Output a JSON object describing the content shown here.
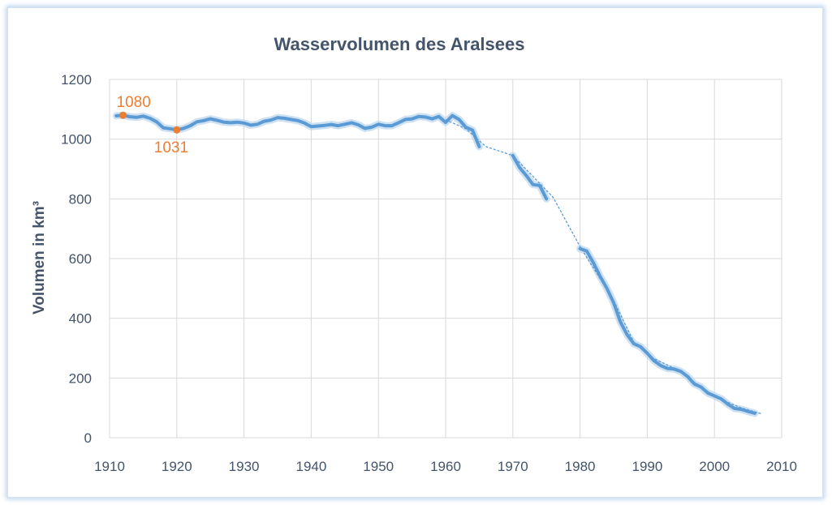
{
  "chart_data": {
    "type": "line",
    "title": "Wasservolumen des Aralsees",
    "xlabel": "",
    "ylabel": "Volumen in km³",
    "xlim": [
      1910,
      2010
    ],
    "ylim": [
      0,
      1200
    ],
    "x_ticks": [
      "1910",
      "1920",
      "1930",
      "1940",
      "1950",
      "1960",
      "1970",
      "1980",
      "1990",
      "2000",
      "2010"
    ],
    "y_ticks": [
      "0",
      "200",
      "400",
      "600",
      "800",
      "1000",
      "1200"
    ],
    "grid": true,
    "legend": "none",
    "colors": {
      "line": "#5b9bd5",
      "glow": "#bdd7ee",
      "annotation": "#ed7d31",
      "grid": "#d9d9d9",
      "text": "#44546a"
    },
    "series": [
      {
        "style": "solid",
        "segments": [
          [
            [
              1911,
              1078
            ],
            [
              1912,
              1080
            ],
            [
              1913,
              1075
            ],
            [
              1914,
              1073
            ],
            [
              1915,
              1077
            ],
            [
              1916,
              1070
            ],
            [
              1917,
              1058
            ],
            [
              1918,
              1038
            ],
            [
              1919,
              1035
            ],
            [
              1920,
              1031
            ],
            [
              1921,
              1036
            ],
            [
              1922,
              1045
            ],
            [
              1923,
              1058
            ],
            [
              1924,
              1062
            ],
            [
              1925,
              1068
            ],
            [
              1926,
              1063
            ],
            [
              1927,
              1057
            ],
            [
              1928,
              1055
            ],
            [
              1929,
              1057
            ],
            [
              1930,
              1054
            ],
            [
              1931,
              1047
            ],
            [
              1932,
              1050
            ],
            [
              1933,
              1060
            ],
            [
              1934,
              1064
            ],
            [
              1935,
              1072
            ],
            [
              1936,
              1070
            ],
            [
              1937,
              1066
            ],
            [
              1938,
              1062
            ],
            [
              1939,
              1054
            ],
            [
              1940,
              1042
            ],
            [
              1941,
              1044
            ],
            [
              1942,
              1046
            ],
            [
              1943,
              1049
            ],
            [
              1944,
              1045
            ],
            [
              1945,
              1050
            ],
            [
              1946,
              1055
            ],
            [
              1947,
              1048
            ],
            [
              1948,
              1036
            ],
            [
              1949,
              1040
            ],
            [
              1950,
              1050
            ],
            [
              1951,
              1045
            ],
            [
              1952,
              1045
            ],
            [
              1953,
              1055
            ],
            [
              1954,
              1066
            ],
            [
              1955,
              1068
            ],
            [
              1956,
              1076
            ],
            [
              1957,
              1074
            ],
            [
              1958,
              1068
            ],
            [
              1959,
              1076
            ],
            [
              1960,
              1056
            ],
            [
              1961,
              1079
            ],
            [
              1962,
              1066
            ],
            [
              1963,
              1040
            ],
            [
              1964,
              1030
            ],
            [
              1965,
              975
            ]
          ],
          [
            [
              1970,
              945
            ],
            [
              1971,
              905
            ],
            [
              1972,
              878
            ],
            [
              1973,
              848
            ],
            [
              1974,
              845
            ],
            [
              1975,
              800
            ]
          ],
          [
            [
              1980,
              633
            ],
            [
              1981,
              625
            ],
            [
              1982,
              585
            ],
            [
              1983,
              540
            ],
            [
              1984,
              500
            ],
            [
              1985,
              452
            ],
            [
              1986,
              388
            ],
            [
              1987,
              345
            ],
            [
              1988,
              315
            ],
            [
              1989,
              305
            ],
            [
              1990,
              283
            ],
            [
              1991,
              258
            ],
            [
              1992,
              242
            ],
            [
              1993,
              232
            ],
            [
              1994,
              230
            ],
            [
              1995,
              222
            ],
            [
              1996,
              205
            ],
            [
              1997,
              180
            ],
            [
              1998,
              170
            ],
            [
              1999,
              150
            ],
            [
              2000,
              140
            ],
            [
              2001,
              130
            ],
            [
              2002,
              112
            ],
            [
              2003,
              98
            ],
            [
              2004,
              95
            ],
            [
              2005,
              88
            ],
            [
              2006,
              82
            ]
          ]
        ]
      },
      {
        "style": "dashed",
        "points": [
          [
            1960,
            1065
          ],
          [
            1963,
            1035
          ],
          [
            1966,
            975
          ],
          [
            1970,
            945
          ],
          [
            1976,
            805
          ],
          [
            1980,
            640
          ],
          [
            1985,
            460
          ],
          [
            1988,
            320
          ],
          [
            1991,
            265
          ],
          [
            1995,
            222
          ],
          [
            1998,
            168
          ],
          [
            2001,
            128
          ],
          [
            2004,
            100
          ],
          [
            2007,
            80
          ]
        ]
      }
    ],
    "annotations": [
      {
        "x": 1912,
        "y": 1080,
        "label": "1080"
      },
      {
        "x": 1920,
        "y": 1031,
        "label": "1031"
      }
    ]
  }
}
